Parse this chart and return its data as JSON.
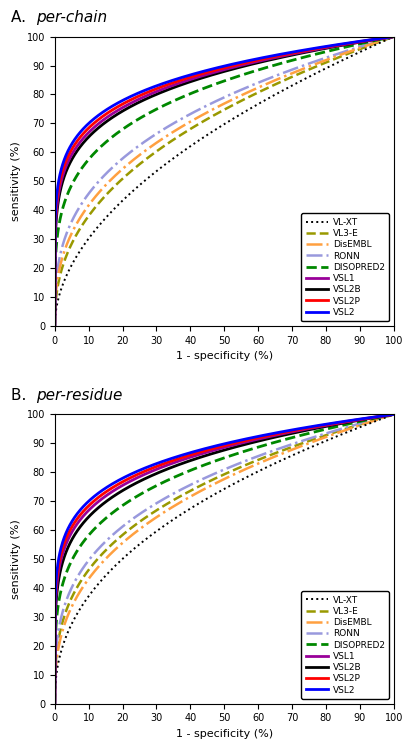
{
  "panel_A_title_prefix": "A. ",
  "panel_A_title_italic": "per-chain",
  "panel_B_title_prefix": "B. ",
  "panel_B_title_italic": "per-residue",
  "xlabel": "1 - specificity (%)",
  "ylabel": "sensitivity (%)",
  "xlim": [
    0,
    100
  ],
  "ylim": [
    0,
    100
  ],
  "xticks": [
    0,
    10,
    20,
    30,
    40,
    50,
    60,
    70,
    80,
    90,
    100
  ],
  "yticks": [
    0,
    10,
    20,
    30,
    40,
    50,
    60,
    70,
    80,
    90,
    100
  ],
  "legend_order": [
    "VL-XT",
    "VL3-E",
    "DisEMBL",
    "RONN",
    "DISOPRED2",
    "VSL1",
    "VSL2B",
    "VSL2P",
    "VSL2"
  ],
  "curves_info": {
    "VL-XT": {
      "color": "#000000",
      "linestyle": "dotted",
      "linewidth": 1.4
    },
    "VL3-E": {
      "color": "#999900",
      "linestyle": "dashed",
      "linewidth": 1.8
    },
    "DisEMBL": {
      "color": "#FFA040",
      "linestyle": "dashdot",
      "linewidth": 1.8
    },
    "RONN": {
      "color": "#9999DD",
      "linestyle": "dashdot",
      "linewidth": 1.8
    },
    "DISOPRED2": {
      "color": "#008800",
      "linestyle": "dashed",
      "linewidth": 2.0
    },
    "VSL1": {
      "color": "#990099",
      "linestyle": "solid",
      "linewidth": 2.0
    },
    "VSL2B": {
      "color": "#000000",
      "linestyle": "solid",
      "linewidth": 2.0
    },
    "VSL2P": {
      "color": "#FF0000",
      "linestyle": "solid",
      "linewidth": 2.0
    },
    "VSL2": {
      "color": "#0000FF",
      "linestyle": "solid",
      "linewidth": 2.0
    }
  },
  "params_A": {
    "VL-XT": 0.52,
    "VL3-E": 0.42,
    "DisEMBL": 0.38,
    "RONN": 0.34,
    "DISOPRED2": 0.24,
    "VSL1": 0.175,
    "VSL2B": 0.185,
    "VSL2P": 0.165,
    "VSL2": 0.155
  },
  "params_B": {
    "VL-XT": 0.43,
    "VL3-E": 0.335,
    "DisEMBL": 0.365,
    "RONN": 0.305,
    "DISOPRED2": 0.235,
    "VSL1": 0.175,
    "VSL2B": 0.19,
    "VSL2P": 0.165,
    "VSL2": 0.155
  },
  "title_fontsize": 11,
  "axis_fontsize": 8,
  "tick_fontsize": 7,
  "legend_fontsize": 6.5,
  "background_color": "#ffffff"
}
